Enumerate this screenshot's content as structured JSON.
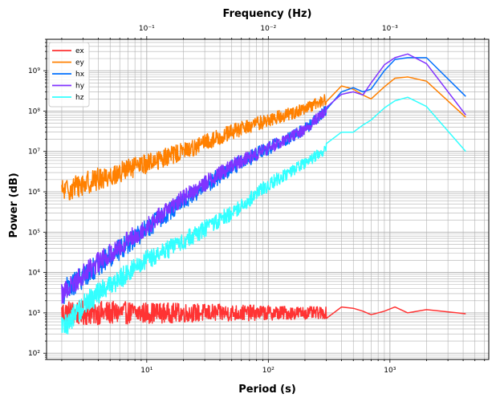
{
  "chart_data": {
    "type": "line",
    "xlabel": "Period (s)",
    "ylabel": "Power (dB)",
    "top_xlabel": "Frequency (Hz)",
    "x_scale": "log",
    "y_scale": "log",
    "xlim": [
      1.5,
      6500
    ],
    "ylim": [
      70,
      6000000000
    ],
    "grid": true,
    "legend_position": "top-left",
    "x_ticks": [
      {
        "value": 10,
        "label": "10¹"
      },
      {
        "value": 100,
        "label": "10²"
      },
      {
        "value": 1000,
        "label": "10³"
      }
    ],
    "top_x_ticks": [
      {
        "value": 10,
        "label": "10⁻¹"
      },
      {
        "value": 100,
        "label": "10⁻²"
      },
      {
        "value": 1000,
        "label": "10⁻³"
      }
    ],
    "y_ticks": [
      {
        "value": 100,
        "label": "10²"
      },
      {
        "value": 1000,
        "label": "10³"
      },
      {
        "value": 10000,
        "label": "10⁴"
      },
      {
        "value": 100000,
        "label": "10⁵"
      },
      {
        "value": 1000000,
        "label": "10⁶"
      },
      {
        "value": 10000000,
        "label": "10⁷"
      },
      {
        "value": 100000000,
        "label": "10⁸"
      },
      {
        "value": 1000000000,
        "label": "10⁹"
      }
    ],
    "series": [
      {
        "name": "ex",
        "color": "#ff3333",
        "noise": 0.32,
        "x": [
          2,
          3,
          5,
          10,
          20,
          50,
          100,
          200,
          300,
          400,
          500,
          600,
          700,
          900,
          1100,
          1400,
          2000,
          4200
        ],
        "y": [
          1000,
          1000,
          1000,
          1000,
          1000,
          1000,
          1000,
          1000,
          1000,
          1400,
          1300,
          1100,
          900,
          1100,
          1400,
          1000,
          1200,
          950
        ]
      },
      {
        "name": "ey",
        "color": "#ff8000",
        "noise": 0.3,
        "x": [
          2,
          3,
          5,
          10,
          20,
          50,
          100,
          200,
          300,
          400,
          500,
          600,
          700,
          900,
          1100,
          1400,
          2000,
          4200
        ],
        "y": [
          1000000,
          1600000,
          2500000,
          5000000,
          10000000,
          30000000,
          60000000,
          110000000,
          200000000,
          420000000,
          350000000,
          250000000,
          200000000,
          400000000,
          650000000,
          700000000,
          550000000,
          70000000
        ]
      },
      {
        "name": "hx",
        "color": "#0070ff",
        "noise": 0.3,
        "x": [
          2,
          3,
          5,
          10,
          20,
          50,
          100,
          200,
          300,
          400,
          500,
          600,
          700,
          900,
          1100,
          1400,
          2000,
          4200
        ],
        "y": [
          3000,
          8000,
          25000,
          120000,
          600000,
          4000000,
          12000000,
          35000000,
          110000000,
          300000000,
          380000000,
          300000000,
          350000000,
          1000000000,
          1900000000,
          2100000000,
          2100000000,
          230000000
        ]
      },
      {
        "name": "hy",
        "color": "#8033ff",
        "noise": 0.28,
        "x": [
          2,
          3,
          5,
          10,
          20,
          50,
          100,
          200,
          300,
          400,
          500,
          600,
          700,
          900,
          1100,
          1400,
          2000,
          4200
        ],
        "y": [
          3000,
          9000,
          30000,
          140000,
          700000,
          4500000,
          12000000,
          35000000,
          110000000,
          260000000,
          300000000,
          250000000,
          500000000,
          1400000000,
          2100000000,
          2600000000,
          1500000000,
          80000000
        ]
      },
      {
        "name": "hz",
        "color": "#33ffff",
        "noise": 0.3,
        "x": [
          2,
          3,
          5,
          10,
          20,
          50,
          100,
          200,
          300,
          400,
          500,
          600,
          700,
          900,
          1100,
          1400,
          2000,
          4200
        ],
        "y": [
          400,
          1500,
          5000,
          20000,
          60000,
          300000,
          1500000,
          5000000,
          12000000,
          30000000,
          30000000,
          45000000,
          60000000,
          120000000,
          180000000,
          220000000,
          130000000,
          10000000
        ]
      }
    ]
  }
}
